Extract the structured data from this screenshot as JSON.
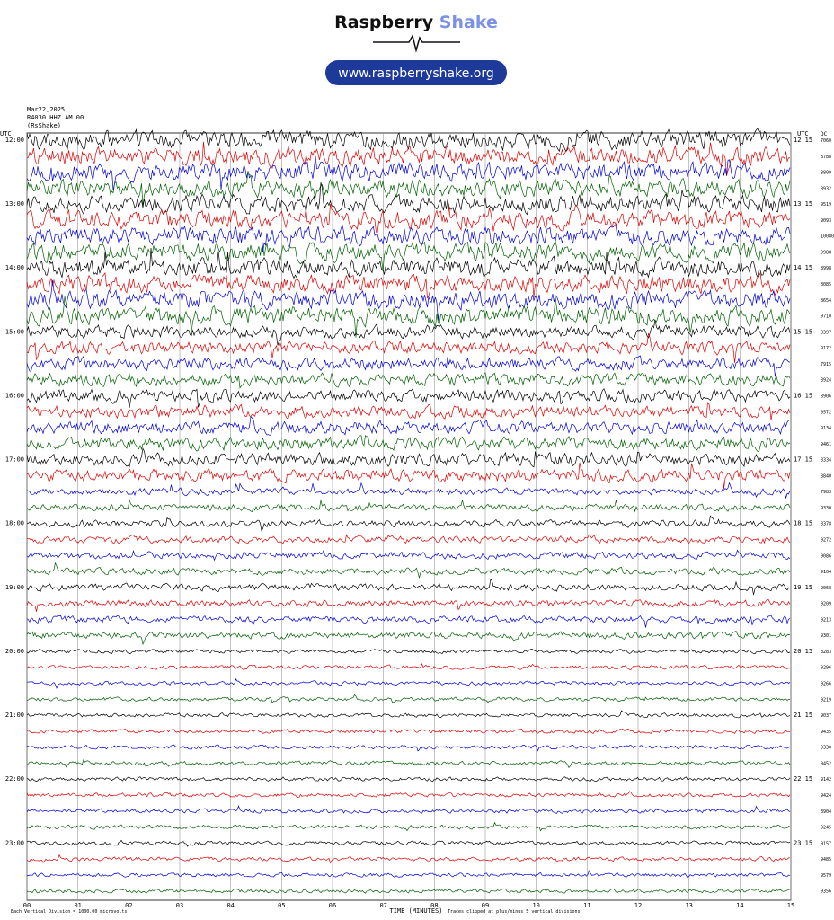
{
  "header": {
    "brand_main": "Raspberry",
    "brand_accent": "Shake",
    "url": "www.raspberryshake.org"
  },
  "station": {
    "date": "Mar22,2025",
    "channel": "R4030 HHZ AM 00",
    "network": "(RsShake)",
    "left_zone": "UTC",
    "right_zone": "UTC"
  },
  "helicorder": {
    "left_labels": [
      "12:00",
      "13:00",
      "14:00",
      "15:00",
      "16:00",
      "17:00",
      "18:00",
      "19:00",
      "20:00",
      "21:00",
      "22:00",
      "23:00"
    ],
    "right_labels": [
      "12:15",
      "13:15",
      "14:15",
      "15:15",
      "16:15",
      "17:15",
      "18:15",
      "19:15",
      "20:15",
      "21:15",
      "22:15",
      "23:15"
    ],
    "dc_label": "DC",
    "dc_values": [
      7060,
      8788,
      8809,
      8932,
      9519,
      9093,
      10080,
      9988,
      8998,
      8085,
      8654,
      9710,
      8397,
      9172,
      7915,
      8924,
      8906,
      9572,
      9134,
      9461,
      8334,
      8840,
      7983,
      9330,
      8378,
      9272,
      9086,
      9104,
      9068,
      9209,
      9213,
      9301,
      8283,
      9296,
      9266,
      9219,
      9037,
      9435,
      9330,
      9452,
      9142,
      9424,
      8904,
      9245,
      9157,
      9485,
      9579,
      9356
    ],
    "colors": [
      "#000000",
      "#e00000",
      "#0000e0",
      "#006000"
    ],
    "xlim": [
      0,
      15
    ],
    "xticks": [
      {
        "value": 0,
        "label": "00"
      },
      {
        "value": 1,
        "label": "01"
      },
      {
        "value": 2,
        "label": "02"
      },
      {
        "value": 3,
        "label": "03"
      },
      {
        "value": 4,
        "label": "04"
      },
      {
        "value": 5,
        "label": "05"
      },
      {
        "value": 6,
        "label": "06"
      },
      {
        "value": 7,
        "label": "07"
      },
      {
        "value": 8,
        "label": "08"
      },
      {
        "value": 9,
        "label": "09"
      },
      {
        "value": 10,
        "label": "10"
      },
      {
        "value": 11,
        "label": "11"
      },
      {
        "value": 12,
        "label": "12"
      },
      {
        "value": 13,
        "label": "13"
      },
      {
        "value": 14,
        "label": "14"
      },
      {
        "value": 15,
        "label": "15"
      }
    ],
    "x_label": "TIME (MINUTES)",
    "scale_note": "Each Vertical Division = 1000.00 microvolts",
    "clip_note": "Traces clipped at plus/minus 5 vertical divisions"
  }
}
